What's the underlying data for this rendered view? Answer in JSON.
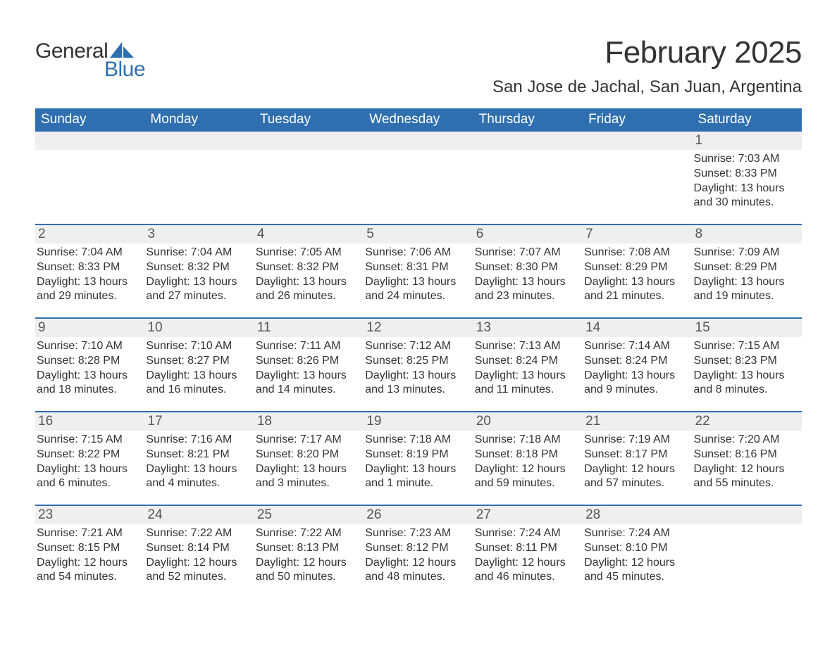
{
  "logo": {
    "word1": "General",
    "word2": "Blue",
    "shape_color": "#2f6fb0"
  },
  "title": "February 2025",
  "location": "San Jose de Jachal, San Juan, Argentina",
  "colors": {
    "header_bg": "#2f6fb0",
    "header_text": "#ffffff",
    "daynum_bg": "#efefef",
    "body_text": "#333333",
    "page_bg": "#ffffff"
  },
  "typography": {
    "title_fontsize": 44,
    "location_fontsize": 24,
    "dow_fontsize": 19,
    "daynum_fontsize": 19,
    "detail_fontsize": 16,
    "font_family": "Arial"
  },
  "days_of_week": [
    "Sunday",
    "Monday",
    "Tuesday",
    "Wednesday",
    "Thursday",
    "Friday",
    "Saturday"
  ],
  "weeks": [
    [
      null,
      null,
      null,
      null,
      null,
      null,
      {
        "n": "1",
        "sunrise": "Sunrise: 7:03 AM",
        "sunset": "Sunset: 8:33 PM",
        "daylight": "Daylight: 13 hours and 30 minutes."
      }
    ],
    [
      {
        "n": "2",
        "sunrise": "Sunrise: 7:04 AM",
        "sunset": "Sunset: 8:33 PM",
        "daylight": "Daylight: 13 hours and 29 minutes."
      },
      {
        "n": "3",
        "sunrise": "Sunrise: 7:04 AM",
        "sunset": "Sunset: 8:32 PM",
        "daylight": "Daylight: 13 hours and 27 minutes."
      },
      {
        "n": "4",
        "sunrise": "Sunrise: 7:05 AM",
        "sunset": "Sunset: 8:32 PM",
        "daylight": "Daylight: 13 hours and 26 minutes."
      },
      {
        "n": "5",
        "sunrise": "Sunrise: 7:06 AM",
        "sunset": "Sunset: 8:31 PM",
        "daylight": "Daylight: 13 hours and 24 minutes."
      },
      {
        "n": "6",
        "sunrise": "Sunrise: 7:07 AM",
        "sunset": "Sunset: 8:30 PM",
        "daylight": "Daylight: 13 hours and 23 minutes."
      },
      {
        "n": "7",
        "sunrise": "Sunrise: 7:08 AM",
        "sunset": "Sunset: 8:29 PM",
        "daylight": "Daylight: 13 hours and 21 minutes."
      },
      {
        "n": "8",
        "sunrise": "Sunrise: 7:09 AM",
        "sunset": "Sunset: 8:29 PM",
        "daylight": "Daylight: 13 hours and 19 minutes."
      }
    ],
    [
      {
        "n": "9",
        "sunrise": "Sunrise: 7:10 AM",
        "sunset": "Sunset: 8:28 PM",
        "daylight": "Daylight: 13 hours and 18 minutes."
      },
      {
        "n": "10",
        "sunrise": "Sunrise: 7:10 AM",
        "sunset": "Sunset: 8:27 PM",
        "daylight": "Daylight: 13 hours and 16 minutes."
      },
      {
        "n": "11",
        "sunrise": "Sunrise: 7:11 AM",
        "sunset": "Sunset: 8:26 PM",
        "daylight": "Daylight: 13 hours and 14 minutes."
      },
      {
        "n": "12",
        "sunrise": "Sunrise: 7:12 AM",
        "sunset": "Sunset: 8:25 PM",
        "daylight": "Daylight: 13 hours and 13 minutes."
      },
      {
        "n": "13",
        "sunrise": "Sunrise: 7:13 AM",
        "sunset": "Sunset: 8:24 PM",
        "daylight": "Daylight: 13 hours and 11 minutes."
      },
      {
        "n": "14",
        "sunrise": "Sunrise: 7:14 AM",
        "sunset": "Sunset: 8:24 PM",
        "daylight": "Daylight: 13 hours and 9 minutes."
      },
      {
        "n": "15",
        "sunrise": "Sunrise: 7:15 AM",
        "sunset": "Sunset: 8:23 PM",
        "daylight": "Daylight: 13 hours and 8 minutes."
      }
    ],
    [
      {
        "n": "16",
        "sunrise": "Sunrise: 7:15 AM",
        "sunset": "Sunset: 8:22 PM",
        "daylight": "Daylight: 13 hours and 6 minutes."
      },
      {
        "n": "17",
        "sunrise": "Sunrise: 7:16 AM",
        "sunset": "Sunset: 8:21 PM",
        "daylight": "Daylight: 13 hours and 4 minutes."
      },
      {
        "n": "18",
        "sunrise": "Sunrise: 7:17 AM",
        "sunset": "Sunset: 8:20 PM",
        "daylight": "Daylight: 13 hours and 3 minutes."
      },
      {
        "n": "19",
        "sunrise": "Sunrise: 7:18 AM",
        "sunset": "Sunset: 8:19 PM",
        "daylight": "Daylight: 13 hours and 1 minute."
      },
      {
        "n": "20",
        "sunrise": "Sunrise: 7:18 AM",
        "sunset": "Sunset: 8:18 PM",
        "daylight": "Daylight: 12 hours and 59 minutes."
      },
      {
        "n": "21",
        "sunrise": "Sunrise: 7:19 AM",
        "sunset": "Sunset: 8:17 PM",
        "daylight": "Daylight: 12 hours and 57 minutes."
      },
      {
        "n": "22",
        "sunrise": "Sunrise: 7:20 AM",
        "sunset": "Sunset: 8:16 PM",
        "daylight": "Daylight: 12 hours and 55 minutes."
      }
    ],
    [
      {
        "n": "23",
        "sunrise": "Sunrise: 7:21 AM",
        "sunset": "Sunset: 8:15 PM",
        "daylight": "Daylight: 12 hours and 54 minutes."
      },
      {
        "n": "24",
        "sunrise": "Sunrise: 7:22 AM",
        "sunset": "Sunset: 8:14 PM",
        "daylight": "Daylight: 12 hours and 52 minutes."
      },
      {
        "n": "25",
        "sunrise": "Sunrise: 7:22 AM",
        "sunset": "Sunset: 8:13 PM",
        "daylight": "Daylight: 12 hours and 50 minutes."
      },
      {
        "n": "26",
        "sunrise": "Sunrise: 7:23 AM",
        "sunset": "Sunset: 8:12 PM",
        "daylight": "Daylight: 12 hours and 48 minutes."
      },
      {
        "n": "27",
        "sunrise": "Sunrise: 7:24 AM",
        "sunset": "Sunset: 8:11 PM",
        "daylight": "Daylight: 12 hours and 46 minutes."
      },
      {
        "n": "28",
        "sunrise": "Sunrise: 7:24 AM",
        "sunset": "Sunset: 8:10 PM",
        "daylight": "Daylight: 12 hours and 45 minutes."
      },
      null
    ]
  ]
}
